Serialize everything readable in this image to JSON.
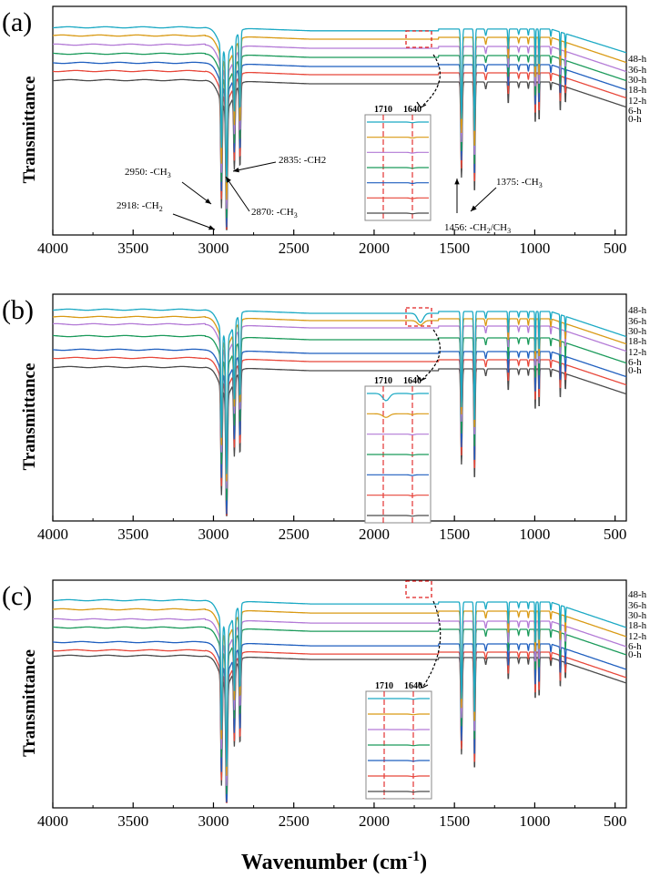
{
  "figure": {
    "x_axis_title": "Wavenumber (cm",
    "x_axis_title_sup": "-1",
    "x_axis_title_close": ")"
  },
  "colors": {
    "0-h": "#4a4a4a",
    "6-h": "#e8473a",
    "12-h": "#1f5fbf",
    "18-h": "#1a9a5a",
    "30-h": "#b37ad6",
    "36-h": "#d99a14",
    "48-h": "#1ba9c4",
    "inset_guides": "#e02020"
  },
  "chart_data": [
    {
      "type": "line",
      "panel_label": "(a)",
      "ylabel": "Transmittance",
      "xlim": [
        4000,
        430
      ],
      "x_reversed": true,
      "x_ticks": [
        4000,
        3500,
        3000,
        2500,
        2000,
        1500,
        1000,
        500
      ],
      "y_ticks": "none",
      "grid": false,
      "legend": "curve labels at right end",
      "series": [
        {
          "name": "0-h"
        },
        {
          "name": "6-h"
        },
        {
          "name": "12-h"
        },
        {
          "name": "18-h"
        },
        {
          "name": "30-h"
        },
        {
          "name": "36-h"
        },
        {
          "name": "48-h"
        }
      ],
      "peak_wavenumbers": [
        2950,
        2918,
        2870,
        2835,
        1456,
        1375,
        1165,
        997,
        973,
        841,
        809
      ],
      "annotations": [
        {
          "text": "2950: -CH",
          "sub": "3",
          "x": 2950
        },
        {
          "text": "2918: -CH",
          "sub": "2",
          "x": 2918
        },
        {
          "text": "2870: -CH",
          "sub": "3",
          "x": 2870
        },
        {
          "text": "2835: -CH2",
          "sub": "",
          "x": 2835
        },
        {
          "text": "1456: -CH",
          "sub": "2",
          "tail": "/CH",
          "sub2": "3",
          "x": 1456
        },
        {
          "text": "1375: -CH",
          "sub": "3",
          "x": 1375
        }
      ],
      "inset": {
        "range": [
          1750,
          1600
        ],
        "guide_lines": [
          "1710",
          "1640"
        ],
        "carbonyl_band_visible": false
      }
    },
    {
      "type": "line",
      "panel_label": "(b)",
      "ylabel": "Transmittance",
      "xlim": [
        4000,
        430
      ],
      "x_reversed": true,
      "x_ticks": [
        4000,
        3500,
        3000,
        2500,
        2000,
        1500,
        1000,
        500
      ],
      "y_ticks": "none",
      "grid": false,
      "legend": "curve labels at right end",
      "series": [
        {
          "name": "0-h"
        },
        {
          "name": "6-h"
        },
        {
          "name": "12-h"
        },
        {
          "name": "18-h"
        },
        {
          "name": "30-h"
        },
        {
          "name": "36-h"
        },
        {
          "name": "48-h"
        }
      ],
      "peak_wavenumbers": [
        2950,
        2918,
        2870,
        2835,
        1456,
        1375,
        1165,
        997,
        973,
        841,
        809
      ],
      "inset": {
        "range": [
          1750,
          1600
        ],
        "guide_lines": [
          "1710",
          "1640"
        ],
        "carbonyl_band_visible": true
      }
    },
    {
      "type": "line",
      "panel_label": "(c)",
      "ylabel": "Transmittance",
      "xlim": [
        4000,
        430
      ],
      "x_reversed": true,
      "x_ticks": [
        4000,
        3500,
        3000,
        2500,
        2000,
        1500,
        1000,
        500
      ],
      "y_ticks": "none",
      "grid": false,
      "legend": "curve labels at right end",
      "series": [
        {
          "name": "0-h"
        },
        {
          "name": "6-h"
        },
        {
          "name": "12-h"
        },
        {
          "name": "18-h"
        },
        {
          "name": "30-h"
        },
        {
          "name": "36-h"
        },
        {
          "name": "48-h"
        }
      ],
      "peak_wavenumbers": [
        2950,
        2918,
        2870,
        2835,
        1456,
        1375,
        1165,
        997,
        973,
        841,
        809
      ],
      "inset": {
        "range": [
          1750,
          1600
        ],
        "guide_lines": [
          "1710",
          "1640"
        ],
        "carbonyl_band_visible": false
      }
    }
  ]
}
